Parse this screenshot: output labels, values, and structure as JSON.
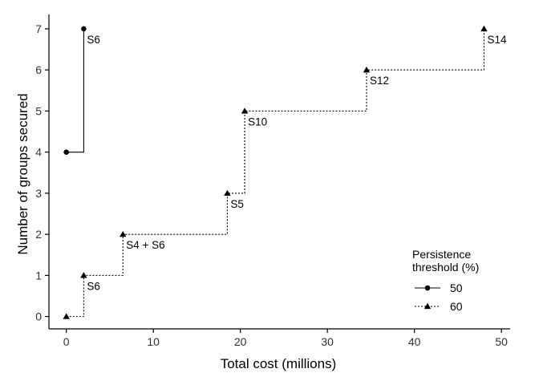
{
  "chart_data": {
    "type": "line",
    "xlabel": "Total cost (millions)",
    "ylabel": "Number of groups secured",
    "xlim": [
      -2,
      51
    ],
    "ylim": [
      -0.3,
      7.35
    ],
    "x_ticks": [
      0,
      10,
      20,
      30,
      40,
      50
    ],
    "y_ticks": [
      0,
      1,
      2,
      3,
      4,
      5,
      6,
      7
    ],
    "grid": false,
    "step": true,
    "legend": {
      "title": "Persistence\nthreshold (%)",
      "placement": "bottom-right"
    },
    "series": [
      {
        "name": "50",
        "line_style": "solid",
        "marker": "circle",
        "points": [
          {
            "x": 0,
            "y": 4
          },
          {
            "x": 2,
            "y": 7,
            "label": "S6"
          }
        ]
      },
      {
        "name": "60",
        "line_style": "dotted",
        "marker": "triangle",
        "points": [
          {
            "x": 0,
            "y": 0
          },
          {
            "x": 2,
            "y": 1,
            "label": "S6"
          },
          {
            "x": 6.5,
            "y": 2,
            "label": "S4 + S6"
          },
          {
            "x": 18.5,
            "y": 3,
            "label": "S5"
          },
          {
            "x": 20.5,
            "y": 5,
            "label": "S10"
          },
          {
            "x": 34.5,
            "y": 6,
            "label": "S12"
          },
          {
            "x": 48,
            "y": 7,
            "label": "S14"
          }
        ]
      }
    ]
  },
  "colors": {
    "line": "#000000",
    "axis": "#000000",
    "tick_text": "#333333"
  }
}
